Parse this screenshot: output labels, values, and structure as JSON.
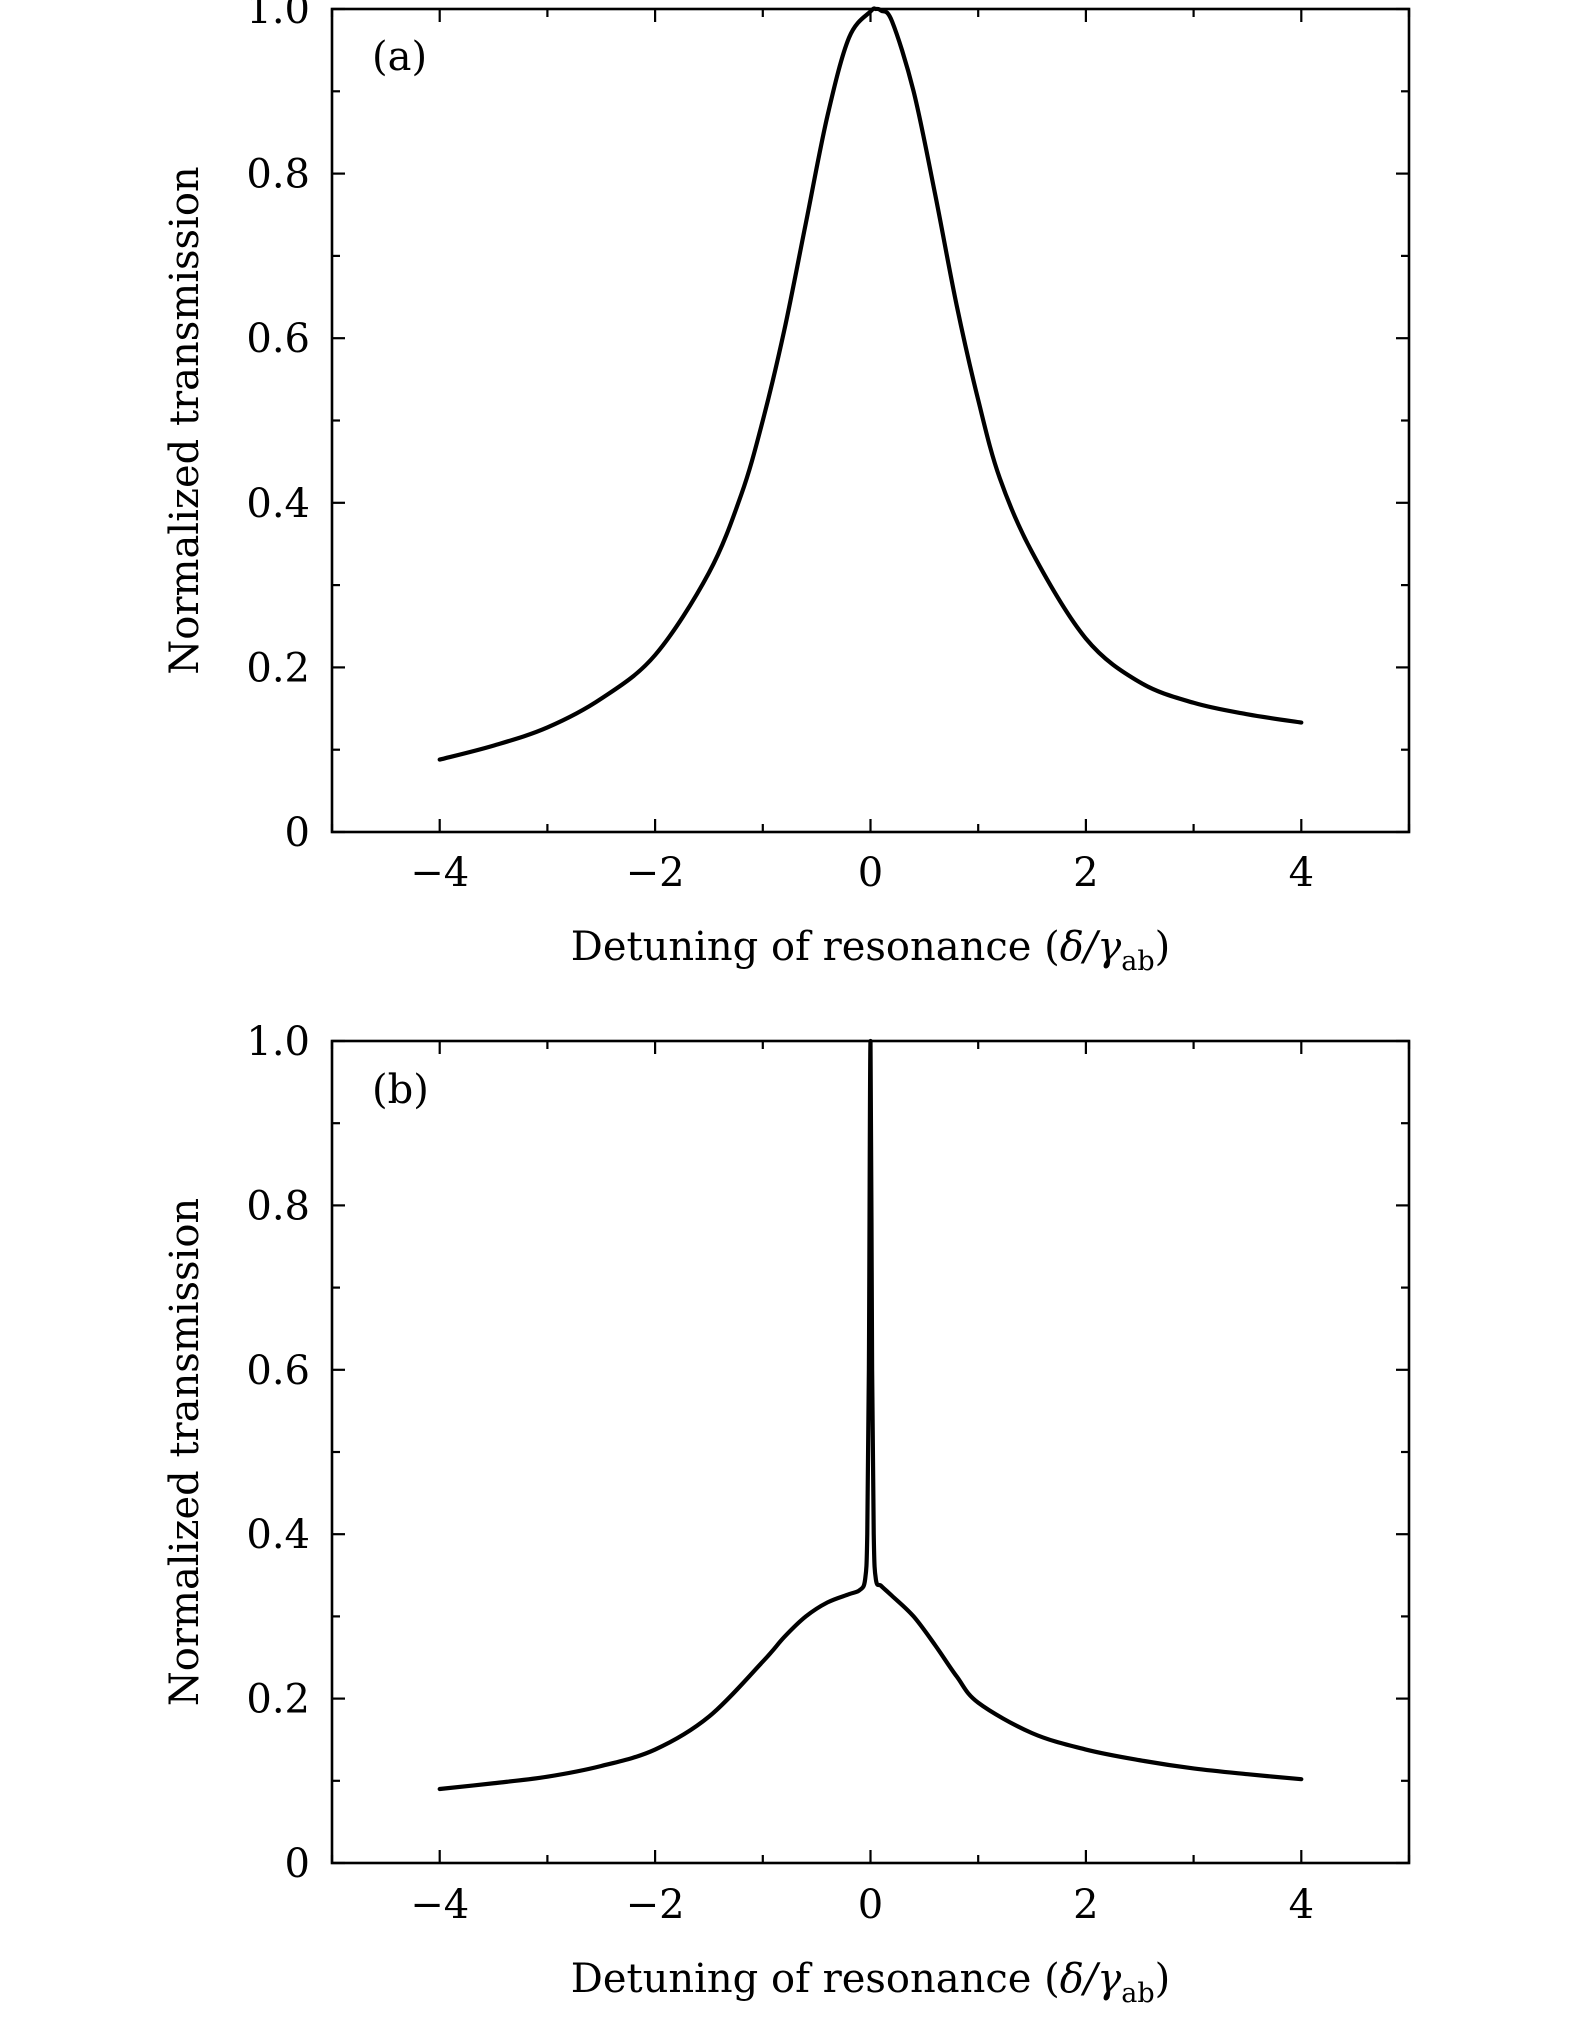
{
  "chart_data": [
    {
      "type": "line",
      "panel_label": "(a)",
      "xlabel": {
        "prefix": "Detuning of resonance (",
        "symbol": "δ/γ",
        "subscript": "ab",
        "suffix": ")"
      },
      "ylabel": "Normalized transmission",
      "xlim": [
        -5,
        5
      ],
      "ylim": [
        0,
        1.0
      ],
      "xticks": [
        -4,
        -2,
        0,
        2,
        4
      ],
      "xtick_labels": [
        "−4",
        "−2",
        "0",
        "2",
        "4"
      ],
      "yticks": [
        0,
        0.2,
        0.4,
        0.6,
        0.8,
        1.0
      ],
      "ytick_labels": [
        "0",
        "0.2",
        "0.4",
        "0.6",
        "0.8",
        "1.0"
      ],
      "grid": false,
      "legend": "none",
      "series": [
        {
          "x": [
            -4.0,
            -3.5,
            -3.0,
            -2.5,
            -2.0,
            -1.5,
            -1.2,
            -1.0,
            -0.8,
            -0.6,
            -0.4,
            -0.2,
            0.0,
            0.05,
            0.1,
            0.2,
            0.4,
            0.6,
            0.8,
            1.0,
            1.2,
            1.5,
            2.0,
            2.5,
            3.0,
            3.5,
            4.0
          ],
          "y": [
            0.088,
            0.105,
            0.127,
            0.162,
            0.215,
            0.315,
            0.41,
            0.5,
            0.61,
            0.74,
            0.87,
            0.965,
            0.997,
            1.0,
            0.998,
            0.985,
            0.9,
            0.775,
            0.64,
            0.525,
            0.43,
            0.34,
            0.235,
            0.182,
            0.157,
            0.143,
            0.133
          ]
        }
      ]
    },
    {
      "type": "line",
      "panel_label": "(b)",
      "xlabel": {
        "prefix": "Detuning of resonance (",
        "symbol": "δ/γ",
        "subscript": "ab",
        "suffix": ")"
      },
      "ylabel": "Normalized transmission",
      "xlim": [
        -5,
        5
      ],
      "ylim": [
        0,
        1.0
      ],
      "xticks": [
        -4,
        -2,
        0,
        2,
        4
      ],
      "xtick_labels": [
        "−4",
        "−2",
        "0",
        "2",
        "4"
      ],
      "yticks": [
        0,
        0.2,
        0.4,
        0.6,
        0.8,
        1.0
      ],
      "ytick_labels": [
        "0",
        "0.2",
        "0.4",
        "0.6",
        "0.8",
        "1.0"
      ],
      "grid": false,
      "legend": "none",
      "series": [
        {
          "x": [
            -4.0,
            -3.5,
            -3.0,
            -2.5,
            -2.0,
            -1.5,
            -1.0,
            -0.8,
            -0.6,
            -0.4,
            -0.2,
            -0.1,
            -0.05,
            -0.03,
            -0.015,
            0.0,
            0.015,
            0.03,
            0.05,
            0.1,
            0.2,
            0.4,
            0.6,
            0.8,
            1.0,
            1.5,
            2.0,
            2.5,
            3.0,
            3.5,
            4.0
          ],
          "y": [
            0.09,
            0.097,
            0.105,
            0.118,
            0.138,
            0.178,
            0.245,
            0.275,
            0.3,
            0.317,
            0.327,
            0.332,
            0.345,
            0.4,
            0.6,
            1.0,
            0.6,
            0.4,
            0.345,
            0.337,
            0.325,
            0.3,
            0.265,
            0.227,
            0.195,
            0.158,
            0.138,
            0.125,
            0.115,
            0.108,
            0.102
          ]
        }
      ]
    }
  ]
}
